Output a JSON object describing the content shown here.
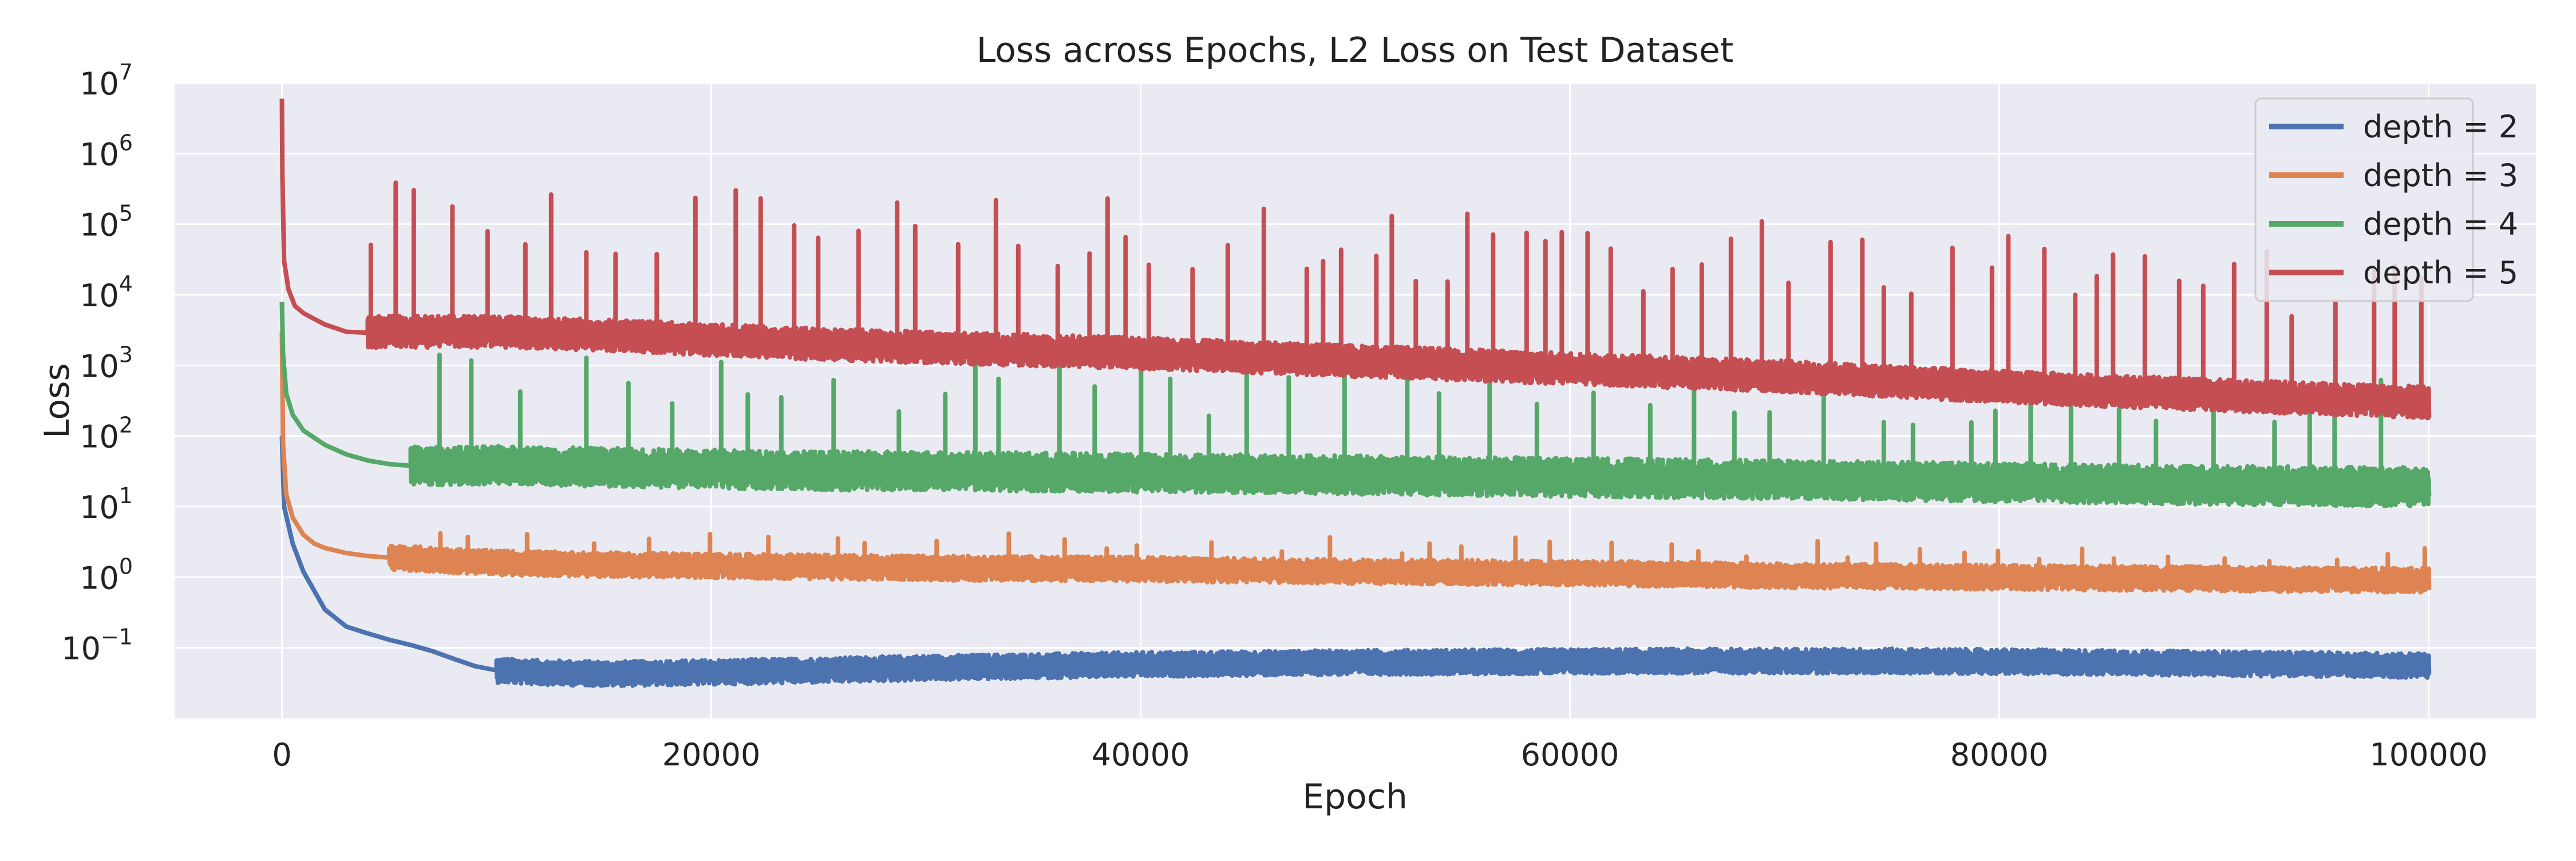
{
  "chart_data": {
    "type": "line",
    "title": "Loss across Epochs, L2 Loss on Test Dataset",
    "xlabel": "Epoch",
    "ylabel": "Loss",
    "xlim": [
      -5000,
      105000
    ],
    "ylim": [
      0.01,
      10000000
    ],
    "yscale": "log",
    "grid": true,
    "legend_position": "top-right",
    "background": "#eaeaf2",
    "x_ticks": [
      {
        "value": 0,
        "label": "0"
      },
      {
        "value": 20000,
        "label": "20000"
      },
      {
        "value": 40000,
        "label": "40000"
      },
      {
        "value": 60000,
        "label": "60000"
      },
      {
        "value": 80000,
        "label": "80000"
      },
      {
        "value": 100000,
        "label": "100000"
      }
    ],
    "y_ticks": [
      {
        "value": 0.1,
        "base": "10",
        "exp": "−1"
      },
      {
        "value": 1,
        "base": "10",
        "exp": "0"
      },
      {
        "value": 10,
        "base": "10",
        "exp": "1"
      },
      {
        "value": 100,
        "base": "10",
        "exp": "2"
      },
      {
        "value": 1000,
        "base": "10",
        "exp": "3"
      },
      {
        "value": 10000,
        "base": "10",
        "exp": "4"
      },
      {
        "value": 100000,
        "base": "10",
        "exp": "5"
      },
      {
        "value": 1000000,
        "base": "10",
        "exp": "6"
      },
      {
        "value": 10000000,
        "base": "10",
        "exp": "7"
      }
    ],
    "series": [
      {
        "name": "depth = 2",
        "color": "#4c72b0",
        "x": [
          0,
          100,
          500,
          1000,
          2000,
          3000,
          4000,
          5000,
          6000,
          7000,
          8000,
          9000,
          10000,
          12000,
          15000,
          18000,
          20000,
          25000,
          30000,
          35000,
          40000,
          45000,
          50000,
          55000,
          60000,
          65000,
          70000,
          75000,
          80000,
          85000,
          90000,
          95000,
          100000
        ],
        "y": [
          100,
          10,
          3,
          1.2,
          0.35,
          0.2,
          0.16,
          0.13,
          0.11,
          0.09,
          0.07,
          0.055,
          0.048,
          0.045,
          0.043,
          0.044,
          0.045,
          0.048,
          0.052,
          0.055,
          0.058,
          0.06,
          0.062,
          0.063,
          0.064,
          0.065,
          0.065,
          0.065,
          0.064,
          0.062,
          0.06,
          0.058,
          0.056
        ],
        "noise_from": 10000,
        "noise_amp": 0.35,
        "spike_count": 0,
        "spike_amp": 0
      },
      {
        "name": "depth = 3",
        "color": "#dd8452",
        "x": [
          0,
          50,
          200,
          500,
          1000,
          1500,
          2000,
          3000,
          4000,
          5000,
          6000,
          8000,
          10000,
          15000,
          20000,
          30000,
          40000,
          50000,
          60000,
          70000,
          80000,
          90000,
          100000
        ],
        "y": [
          3000,
          80,
          15,
          7,
          4,
          3,
          2.6,
          2.2,
          2.0,
          1.9,
          1.85,
          1.7,
          1.6,
          1.5,
          1.45,
          1.35,
          1.3,
          1.2,
          1.15,
          1.05,
          1.0,
          0.95,
          0.9
        ],
        "noise_from": 5000,
        "noise_amp": 0.35,
        "spike_count": 40,
        "spike_amp": 0.5
      },
      {
        "name": "depth = 4",
        "color": "#55a868",
        "x": [
          0,
          50,
          200,
          500,
          1000,
          2000,
          3000,
          4000,
          5000,
          6000,
          7000,
          10000,
          15000,
          20000,
          25000,
          30000,
          40000,
          50000,
          60000,
          70000,
          80000,
          90000,
          100000
        ],
        "y": [
          8000,
          1500,
          400,
          200,
          120,
          75,
          55,
          45,
          40,
          38,
          37,
          38,
          36,
          34,
          32,
          32,
          30,
          28,
          26,
          24,
          22,
          20,
          19
        ],
        "noise_from": 6000,
        "noise_amp": 0.55,
        "spike_count": 45,
        "spike_amp": 1.6
      },
      {
        "name": "depth = 5",
        "color": "#c44e52",
        "x": [
          0,
          20,
          100,
          300,
          600,
          1000,
          2000,
          3000,
          4000,
          5000,
          10000,
          15000,
          20000,
          25000,
          30000,
          40000,
          50000,
          60000,
          70000,
          80000,
          90000,
          100000
        ],
        "y": [
          6000000,
          500000,
          30000,
          12000,
          7000,
          5500,
          3800,
          3000,
          2900,
          3000,
          3000,
          2700,
          2300,
          2000,
          1800,
          1500,
          1150,
          900,
          700,
          500,
          380,
          300
        ],
        "noise_from": 4000,
        "noise_amp": 0.45,
        "spike_count": 70,
        "spike_amp": 2.2
      }
    ]
  }
}
